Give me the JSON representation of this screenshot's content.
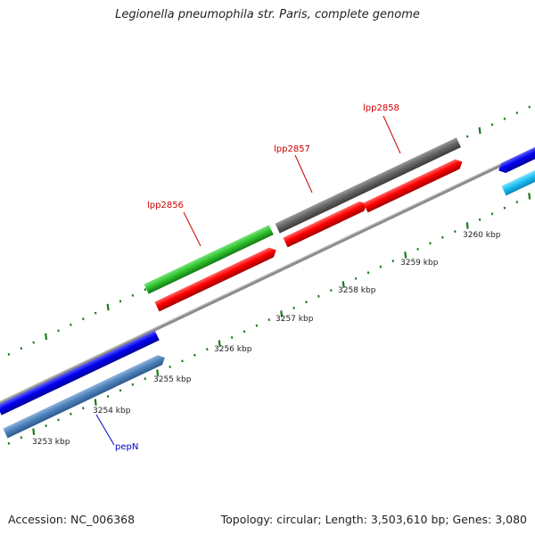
{
  "title": "Legionella pneumophila str. Paris, complete genome",
  "footer": {
    "accession": "Accession: NC_006368",
    "summary": "Topology: circular; Length: 3,503,610 bp; Genes: 3,080"
  },
  "colors": {
    "backbone": "#8c8c8c",
    "tick": "#1a7a1a",
    "label_red": "#cc0000",
    "label_blue": "#0000cc"
  },
  "kbp_ticks": [
    {
      "label": "3253 kbp",
      "kbp": 3253
    },
    {
      "label": "3254 kbp",
      "kbp": 3254
    },
    {
      "label": "3255 kbp",
      "kbp": 3255
    },
    {
      "label": "3256 kbp",
      "kbp": 3256
    },
    {
      "label": "3257 kbp",
      "kbp": 3257
    },
    {
      "label": "3258 kbp",
      "kbp": 3258
    },
    {
      "label": "3259 kbp",
      "kbp": 3259
    },
    {
      "label": "3260 kbp",
      "kbp": 3260
    }
  ],
  "gene_labels": [
    {
      "text": "lpp2856",
      "color": "#cc0000"
    },
    {
      "text": "lpp2857",
      "color": "#cc0000"
    },
    {
      "text": "lpp2858",
      "color": "#cc0000"
    },
    {
      "text": "pepN",
      "color": "#0000cc"
    }
  ]
}
